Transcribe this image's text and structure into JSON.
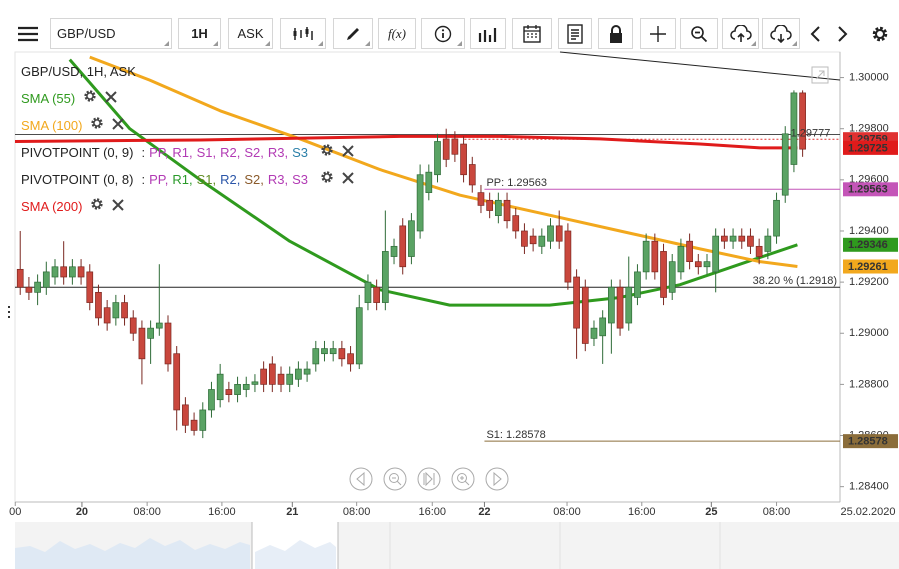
{
  "toolbar": {
    "symbol": "GBP/USD",
    "timeframe": "1H",
    "price_type": "ASK",
    "function_icon": "f(x)"
  },
  "chart_data": {
    "type": "candlestick",
    "series": [
      {
        "name": "GBP/USD, 1H, ASK",
        "up_color": "#5aa364",
        "down_color": "#c9473d",
        "open": [
          1.2925,
          1.2918,
          1.2916,
          1.2918,
          1.2922,
          1.2926,
          1.2922,
          1.2926,
          1.2924,
          1.2916,
          1.291,
          1.2906,
          1.2912,
          1.2906,
          1.2902,
          1.2898,
          1.2902,
          1.2904,
          1.2892,
          1.2872,
          1.2866,
          1.2862,
          1.287,
          1.2874,
          1.2878,
          1.2876,
          1.2878,
          1.288,
          1.2886,
          1.2888,
          1.2884,
          1.288,
          1.2882,
          1.2884,
          1.2888,
          1.2892,
          1.2892,
          1.2894,
          1.2892,
          1.2888,
          1.2912,
          1.2918,
          1.2912,
          1.293,
          1.2942,
          1.293,
          1.294,
          1.2955,
          1.2962,
          1.2976,
          1.2976,
          1.2974,
          1.2966,
          1.2955,
          1.2952,
          1.2946,
          1.2952,
          1.2946,
          1.294,
          1.2938,
          1.2934,
          1.2936,
          1.2942,
          1.294,
          1.2922,
          1.2918,
          1.2898,
          1.2899,
          1.2904,
          1.2918,
          1.2904,
          1.2914,
          1.2924,
          1.2936,
          1.2932,
          1.2916,
          1.2924,
          1.2936,
          1.2928,
          1.2926,
          1.2924,
          1.2938,
          1.2936,
          1.2938,
          1.2938,
          1.2934,
          1.2932,
          1.2938,
          1.2954,
          1.2966,
          1.2994
        ],
        "high": [
          1.294,
          1.2922,
          1.2923,
          1.2928,
          1.2929,
          1.2936,
          1.2929,
          1.2929,
          1.2927,
          1.2919,
          1.2913,
          1.2915,
          1.2915,
          1.2909,
          1.2905,
          1.2905,
          1.2927,
          1.2907,
          1.2895,
          1.2875,
          1.2869,
          1.2873,
          1.2881,
          1.2888,
          1.2881,
          1.2883,
          1.2883,
          1.2884,
          1.2889,
          1.2891,
          1.2887,
          1.2887,
          1.2889,
          1.2889,
          1.2897,
          1.2897,
          1.2897,
          1.2897,
          1.2895,
          1.2915,
          1.2923,
          1.2921,
          1.2948,
          1.2937,
          1.2945,
          1.2947,
          1.2966,
          1.2966,
          1.2978,
          1.298,
          1.2979,
          1.2977,
          1.2969,
          1.2958,
          1.2955,
          1.2955,
          1.2955,
          1.2949,
          1.2943,
          1.2941,
          1.2941,
          1.2945,
          1.2948,
          1.2943,
          1.2925,
          1.2921,
          1.2905,
          1.2909,
          1.2921,
          1.2921,
          1.293,
          1.2927,
          1.2939,
          1.2939,
          1.2935,
          1.2931,
          1.2937,
          1.2939,
          1.2931,
          1.2931,
          1.2941,
          1.2941,
          1.2941,
          1.2941,
          1.2941,
          1.2937,
          1.2941,
          1.2955,
          1.2981,
          1.2995,
          1.2995
        ],
        "low": [
          1.2915,
          1.2913,
          1.2911,
          1.2915,
          1.2919,
          1.2919,
          1.2919,
          1.2919,
          1.2909,
          1.2903,
          1.2901,
          1.2903,
          1.2903,
          1.2897,
          1.288,
          1.2888,
          1.2899,
          1.2885,
          1.2862,
          1.2861,
          1.286,
          1.2859,
          1.2867,
          1.2871,
          1.2873,
          1.2873,
          1.2875,
          1.2877,
          1.2877,
          1.2877,
          1.2877,
          1.2877,
          1.2879,
          1.2881,
          1.2885,
          1.2889,
          1.2889,
          1.2887,
          1.2885,
          1.2886,
          1.2909,
          1.2909,
          1.2909,
          1.2927,
          1.2923,
          1.2927,
          1.2937,
          1.2952,
          1.2959,
          1.2965,
          1.2967,
          1.2959,
          1.2955,
          1.2947,
          1.2945,
          1.2943,
          1.2941,
          1.2937,
          1.2931,
          1.2932,
          1.2931,
          1.2933,
          1.2933,
          1.2917,
          1.289,
          1.2893,
          1.2895,
          1.2888,
          1.2892,
          1.2899,
          1.2901,
          1.2911,
          1.2921,
          1.2921,
          1.2911,
          1.2913,
          1.2921,
          1.2925,
          1.2923,
          1.2923,
          1.2916,
          1.2933,
          1.2933,
          1.2933,
          1.2931,
          1.2927,
          1.2929,
          1.2935,
          1.2951,
          1.2963,
          1.2969
        ],
        "close": [
          1.2918,
          1.2916,
          1.292,
          1.2924,
          1.2926,
          1.2922,
          1.2926,
          1.2922,
          1.2912,
          1.2906,
          1.2904,
          1.2912,
          1.2906,
          1.29,
          1.289,
          1.2902,
          1.2904,
          1.2888,
          1.287,
          1.2864,
          1.2862,
          1.287,
          1.2878,
          1.2884,
          1.2876,
          1.288,
          1.288,
          1.2881,
          1.288,
          1.288,
          1.288,
          1.2884,
          1.2886,
          1.2886,
          1.2894,
          1.2894,
          1.2894,
          1.289,
          1.2888,
          1.291,
          1.292,
          1.2912,
          1.2932,
          1.2934,
          1.2926,
          1.2944,
          1.2962,
          1.2963,
          1.2975,
          1.2968,
          1.297,
          1.2962,
          1.2958,
          1.295,
          1.2948,
          1.2952,
          1.2944,
          1.294,
          1.2934,
          1.2935,
          1.2938,
          1.2942,
          1.2936,
          1.292,
          1.2902,
          1.2896,
          1.2902,
          1.2906,
          1.2918,
          1.2902,
          1.2918,
          1.2924,
          1.2936,
          1.2924,
          1.2914,
          1.2928,
          1.2934,
          1.2928,
          1.2926,
          1.2928,
          1.2938,
          1.2936,
          1.2938,
          1.2936,
          1.2934,
          1.293,
          1.2938,
          1.2952,
          1.2978,
          1.2994,
          1.2972
        ]
      }
    ],
    "xlim": [
      -0.6,
      94.3
    ],
    "xticks": [
      {
        "value": -0.57,
        "label": "00"
      },
      {
        "value": 14.6,
        "label": "08:00"
      },
      {
        "value": 23.2,
        "label": "16:00"
      },
      {
        "value": 38.7,
        "label": "08:00"
      },
      {
        "value": 47.4,
        "label": "16:00"
      },
      {
        "value": 62.9,
        "label": "08:00"
      },
      {
        "value": 71.5,
        "label": "16:00"
      },
      {
        "value": 87.0,
        "label": "08:00"
      }
    ],
    "day_ticks": [
      {
        "value": 7.1,
        "label": "20"
      },
      {
        "value": 31.3,
        "label": "21"
      },
      {
        "value": 53.4,
        "label": "22"
      },
      {
        "value": 79.5,
        "label": "25"
      }
    ],
    "date_label": "25.02.2020",
    "ylim": [
      1.2834,
      1.301
    ],
    "yticks": [
      {
        "value": 1.284,
        "label": "1.28400"
      },
      {
        "value": 1.286,
        "label": "1.28600"
      },
      {
        "value": 1.288,
        "label": "1.28800"
      },
      {
        "value": 1.29,
        "label": "1.29000"
      },
      {
        "value": 1.292,
        "label": "1.29200"
      },
      {
        "value": 1.294,
        "label": "1.29400"
      },
      {
        "value": 1.296,
        "label": "1.29600"
      },
      {
        "value": 1.298,
        "label": "1.29800"
      },
      {
        "value": 1.3,
        "label": "1.30000"
      }
    ],
    "indicators": [
      {
        "name": "SMA (55)",
        "color": "#2f9a1e",
        "x": [
          5.7,
          12.6,
          20.7,
          31,
          41.4,
          49.4,
          60.9,
          69,
          75.9,
          82.8,
          89.4
        ],
        "values": [
          1.3007,
          1.298,
          1.296,
          1.2936,
          1.2917,
          1.2911,
          1.2911,
          1.2914,
          1.2919,
          1.2927,
          1.29346
        ],
        "price_label": 1.29346
      },
      {
        "name": "SMA (100)",
        "color": "#f2a81d",
        "x": [
          8.0,
          14.9,
          23,
          32.2,
          41.4,
          50.6,
          59.8,
          69,
          78.2,
          85.1,
          89.4
        ],
        "values": [
          1.3008,
          1.2999,
          1.2987,
          1.2976,
          1.2964,
          1.2954,
          1.2947,
          1.294,
          1.2933,
          1.2928,
          1.29261
        ],
        "price_label": 1.29261
      },
      {
        "name": "SMA (200)",
        "color": "#e01b1b",
        "x": [
          -0.6,
          20.7,
          43.7,
          55.2,
          66.7,
          78.2,
          85.1,
          89.4
        ],
        "values": [
          1.2975,
          1.29756,
          1.2977,
          1.2977,
          1.2976,
          1.2974,
          1.29725,
          1.29725
        ],
        "price_label": 1.29725
      }
    ],
    "pivots": [
      {
        "name": "PIVOTPOINT (0, 9)",
        "parts": [
          ":",
          "PP,",
          "R1,",
          "S1,",
          "R2,",
          "S2,",
          "R3,",
          "S3"
        ],
        "colors": [
          "#333333",
          "#b23ab4",
          "#b23ab4",
          "#b23ab4",
          "#b23ab4",
          "#b23ab4",
          "#b23ab4",
          "#2a7fa8"
        ]
      },
      {
        "name": "PIVOTPOINT (0, 8)",
        "parts": [
          ":",
          "PP,",
          "R1,",
          "S1,",
          "R2,",
          "S2,",
          "R3,",
          "S3"
        ],
        "colors": [
          "#333333",
          "#b23ab4",
          "#2a9a2a",
          "#5f8a20",
          "#2a55a8",
          "#8a5a2a",
          "#b23ab4",
          "#b23ab4"
        ]
      }
    ],
    "levels": [
      {
        "label": "PP: 1.29563",
        "value": 1.29563,
        "color": "#c455b8",
        "price_box": true
      },
      {
        "label": "S1: 1.28578",
        "value": 1.28578,
        "color": "#8b6d3a",
        "price_box": true
      },
      {
        "label": "38.20 % (1.2918)",
        "value": 1.2918,
        "color": "#222222",
        "price_box": false
      }
    ],
    "current_price": 1.29777,
    "ask_price": 1.29759
  }
}
